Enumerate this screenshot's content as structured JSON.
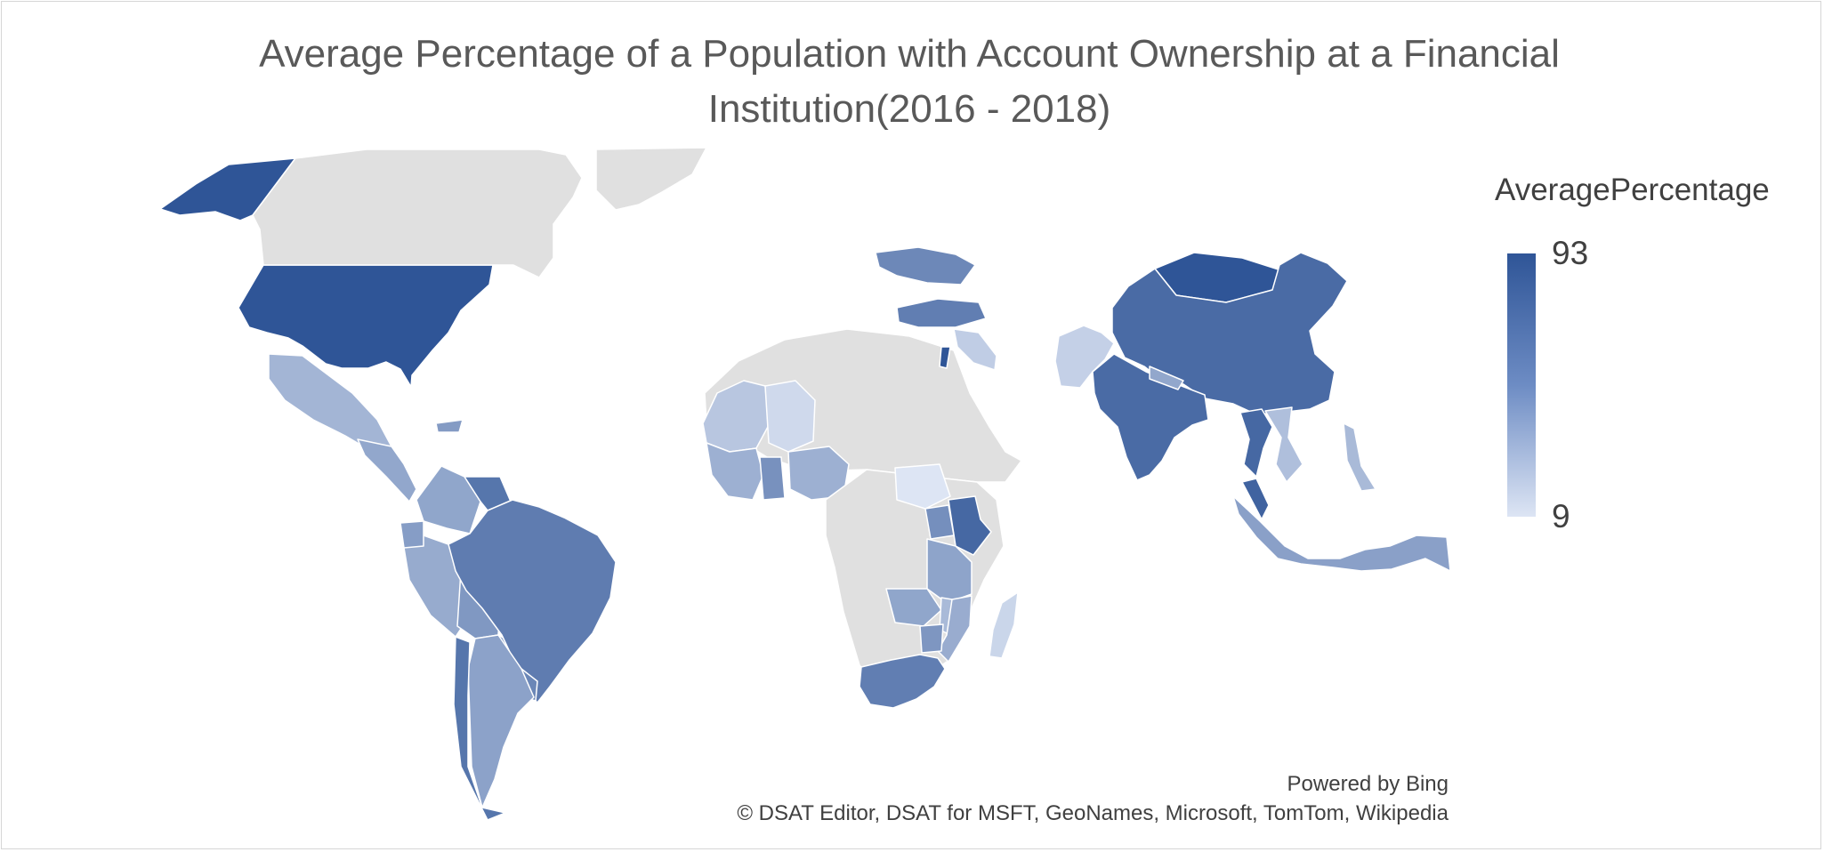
{
  "title": "Average Percentage of a Population with Account Ownership at a Financial Institution(2016 - 2018)",
  "legend": {
    "title": "AveragePercentage",
    "max_label": "93",
    "min_label": "9",
    "max_value": 93,
    "min_value": 9,
    "color_max": "#2f5597",
    "color_min": "#dde5f4",
    "no_data_color": "#e0e0e0"
  },
  "attribution": {
    "powered_by": "Powered by Bing",
    "copyright": "© DSAT Editor, DSAT for MSFT, GeoNames, Microsoft, TomTom, Wikipedia"
  },
  "chart_data": {
    "type": "choropleth",
    "measure": "AveragePercentage",
    "value_range": [
      9,
      93
    ],
    "regions": [
      {
        "id": "us-alaska",
        "value": 93
      },
      {
        "id": "usa",
        "value": 93
      },
      {
        "id": "canada",
        "value": null
      },
      {
        "id": "greenland",
        "value": null
      },
      {
        "id": "mexico",
        "value": 37
      },
      {
        "id": "central-america",
        "value": 45
      },
      {
        "id": "hispaniola",
        "value": 52
      },
      {
        "id": "colombia",
        "value": 46
      },
      {
        "id": "venezuela",
        "value": 74
      },
      {
        "id": "peru",
        "value": 43
      },
      {
        "id": "ecuador",
        "value": 51
      },
      {
        "id": "bolivia",
        "value": 54
      },
      {
        "id": "paraguay",
        "value": 49
      },
      {
        "id": "brazil",
        "value": 70
      },
      {
        "id": "uruguay",
        "value": 64
      },
      {
        "id": "argentina",
        "value": 48
      },
      {
        "id": "chile",
        "value": 74
      },
      {
        "id": "north-africa",
        "value": null
      },
      {
        "id": "mali-senegal",
        "value": 27
      },
      {
        "id": "niger-region",
        "value": 16
      },
      {
        "id": "west-africa-coast",
        "value": 40
      },
      {
        "id": "ghana",
        "value": 58
      },
      {
        "id": "nigeria",
        "value": 40
      },
      {
        "id": "central-africa",
        "value": null
      },
      {
        "id": "south-sudan",
        "value": 9
      },
      {
        "id": "kenya",
        "value": 82
      },
      {
        "id": "uganda",
        "value": 59
      },
      {
        "id": "tanzania",
        "value": 47
      },
      {
        "id": "zambia",
        "value": 46
      },
      {
        "id": "malawi",
        "value": 34
      },
      {
        "id": "mozambique",
        "value": 42
      },
      {
        "id": "zimbabwe",
        "value": 55
      },
      {
        "id": "south-africa",
        "value": 69
      },
      {
        "id": "madagascar",
        "value": 18
      },
      {
        "id": "ukraine",
        "value": 63
      },
      {
        "id": "turkey",
        "value": 69
      },
      {
        "id": "iraq",
        "value": 23
      },
      {
        "id": "israel",
        "value": 93
      },
      {
        "id": "mongolia",
        "value": 93
      },
      {
        "id": "china",
        "value": 80
      },
      {
        "id": "pakistan",
        "value": 21
      },
      {
        "id": "india",
        "value": 80
      },
      {
        "id": "nepal",
        "value": 45
      },
      {
        "id": "thailand",
        "value": 82
      },
      {
        "id": "vietnam",
        "value": 31
      },
      {
        "id": "philippines",
        "value": 34
      },
      {
        "id": "malaysia",
        "value": 85
      },
      {
        "id": "indonesia",
        "value": 49
      }
    ]
  }
}
